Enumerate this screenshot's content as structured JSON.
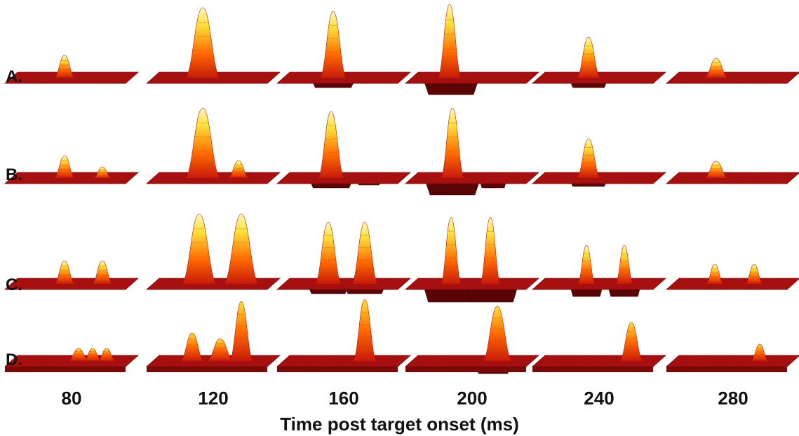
{
  "figure": {
    "row_labels": [
      "A.",
      "B.",
      "C.",
      "D."
    ],
    "time_labels": [
      "80",
      "120",
      "160",
      "200",
      "240",
      "280"
    ],
    "x_axis_title": "Time post target onset (ms)"
  },
  "colors": {
    "plane": "#b01010",
    "plane_dark": "#7a0a0a",
    "peak_low": "#c81a0a",
    "peak_mid": "#ff6a00",
    "peak_high": "#ffe13a",
    "peak_top": "#fff6c0",
    "trough": "#5a0505"
  }
}
